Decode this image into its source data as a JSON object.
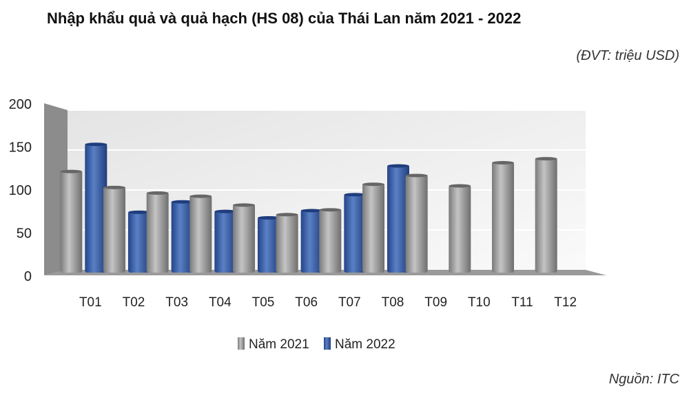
{
  "chart_data": {
    "type": "bar",
    "title": "Nhập khẩu quả và quả hạch (HS 08) của Thái Lan năm 2021 - 2022",
    "unit_note": "(ĐVT: triệu USD)",
    "source": "Nguồn: ITC",
    "categories": [
      "T01",
      "T02",
      "T03",
      "T04",
      "T05",
      "T06",
      "T07",
      "T08",
      "T09",
      "T10",
      "T11",
      "T12"
    ],
    "series": [
      {
        "name": "Năm 2021",
        "color": "#a0a0a0",
        "values": [
          124,
          104,
          97,
          93,
          82,
          70,
          76,
          108,
          119,
          106,
          135,
          140
        ]
      },
      {
        "name": "Năm 2022",
        "color": "#3a5fa8",
        "values": [
          158,
          73,
          86,
          74,
          66,
          75,
          95,
          131,
          null,
          null,
          null,
          null
        ]
      }
    ],
    "ylim": [
      0,
      200
    ],
    "yticks": [
      0,
      50,
      100,
      150,
      200
    ],
    "grid": true,
    "legend": "bottom",
    "style": "3d-column"
  }
}
